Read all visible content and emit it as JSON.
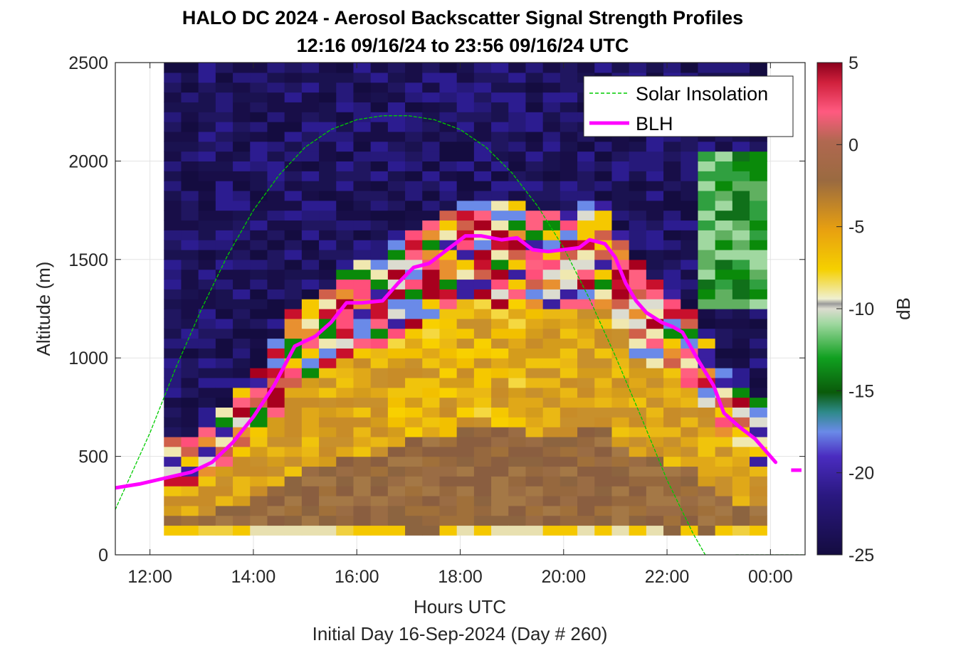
{
  "chart_data": {
    "type": "heatmap",
    "title": "HALO DC 2024 - Aerosol Backscatter Signal Strength Profiles",
    "subtitle": "12:16 09/16/24 to 23:56 09/16/24  UTC",
    "xlabel": "Hours UTC",
    "footer": "Initial Day 16-Sep-2024 (Day # 260)",
    "ylabel": "Altitude (m)",
    "colorbar_label": "dB",
    "xlim": [
      11.33,
      24.67
    ],
    "ylim": [
      0,
      2500
    ],
    "x_ticks": [
      12,
      14,
      16,
      18,
      20,
      22,
      24
    ],
    "x_tick_labels": [
      "12:00",
      "14:00",
      "16:00",
      "18:00",
      "20:00",
      "22:00",
      "00:00"
    ],
    "y_ticks": [
      0,
      500,
      1000,
      1500,
      2000,
      2500
    ],
    "y_tick_labels": [
      "0",
      "500",
      "1000",
      "1500",
      "2000",
      "2500"
    ],
    "clim": [
      -25,
      5
    ],
    "colorbar_ticks": [
      5,
      0,
      -5,
      -10,
      -15,
      -20,
      -25
    ],
    "colorbar_tick_labels": [
      "5",
      "0",
      "-5",
      "-10",
      "-15",
      "-20",
      "-25"
    ],
    "grid": true,
    "legend_position": "top-right",
    "heatmap_time_range": [
      12.27,
      23.93
    ],
    "heatmap_altitude_range": [
      100,
      2500
    ],
    "series": [
      {
        "name": "Solar Insolation",
        "style": "dashed",
        "color": "#00cc00",
        "x": [
          11.33,
          12.0,
          12.5,
          13.0,
          13.5,
          14.0,
          14.5,
          15.0,
          15.5,
          16.0,
          16.5,
          17.0,
          17.5,
          18.0,
          18.5,
          19.0,
          19.5,
          20.0,
          20.5,
          21.0,
          21.5,
          22.0,
          22.5,
          23.0,
          23.3,
          24.67
        ],
        "y": [
          230,
          620,
          950,
          1250,
          1520,
          1750,
          1930,
          2070,
          2160,
          2210,
          2230,
          2230,
          2210,
          2160,
          2070,
          1940,
          1770,
          1560,
          1300,
          1010,
          700,
          380,
          110,
          -120,
          0,
          0
        ]
      },
      {
        "name": "BLH",
        "style": "solid",
        "color": "#ff00ff",
        "x": [
          11.33,
          11.8,
          12.3,
          12.8,
          13.2,
          13.6,
          14.0,
          14.4,
          14.8,
          15.2,
          15.5,
          15.8,
          16.1,
          16.5,
          16.8,
          17.1,
          17.4,
          17.6,
          17.9,
          18.1,
          18.4,
          18.8,
          19.1,
          19.4,
          19.7,
          20.0,
          20.3,
          20.5,
          20.8,
          21.0,
          21.2,
          21.4,
          21.6,
          21.9,
          22.1,
          22.3,
          22.6,
          22.9,
          23.1,
          23.4,
          23.7,
          24.1
        ],
        "y": [
          340,
          360,
          390,
          420,
          470,
          570,
          700,
          860,
          1060,
          1110,
          1180,
          1280,
          1280,
          1290,
          1380,
          1460,
          1480,
          1520,
          1580,
          1620,
          1620,
          1600,
          1610,
          1550,
          1540,
          1550,
          1560,
          1600,
          1580,
          1510,
          1380,
          1290,
          1230,
          1180,
          1160,
          1130,
          990,
          860,
          720,
          650,
          590,
          470
        ],
        "extra_segment": {
          "x": [
            24.4,
            24.6
          ],
          "y": [
            430,
            430
          ]
        }
      }
    ],
    "heatmap_description_colors": {
      "low": "#140c40",
      "mid_low": "#3a1fa0",
      "green": "#0a8a0a",
      "neutral": "#dcdcd0",
      "yellow": "#f5c800",
      "brown": "#8c6440",
      "pink": "#ff4f7a",
      "high": "#a8001e"
    }
  }
}
